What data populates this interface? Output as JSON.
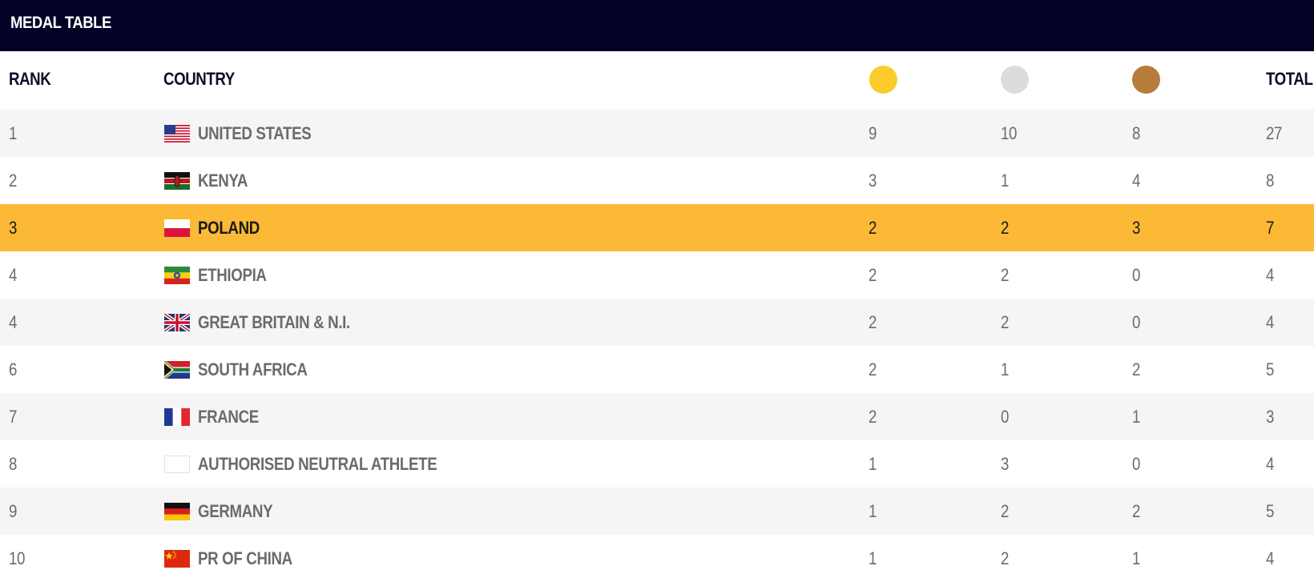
{
  "title": "MEDAL TABLE",
  "headers": {
    "rank": "RANK",
    "country": "COUNTRY",
    "total": "TOTAL"
  },
  "medal_icons": {
    "gold": {
      "icon": "gold-medal-icon",
      "color": "#fccc2d"
    },
    "silver": {
      "icon": "silver-medal-icon",
      "color": "#dcdcde"
    },
    "bronze": {
      "icon": "bronze-medal-icon",
      "color": "#b57c3c"
    }
  },
  "colors": {
    "title_bar": "#020226",
    "highlight_row": "#fbb936",
    "stripe_row": "#f5f5f6"
  },
  "highlighted_country": "POLAND",
  "rows": [
    {
      "rank": "1",
      "country": "UNITED STATES",
      "flag": "usa-flag-icon",
      "gold": "9",
      "silver": "10",
      "bronze": "8",
      "total": "27"
    },
    {
      "rank": "2",
      "country": "KENYA",
      "flag": "kenya-flag-icon",
      "gold": "3",
      "silver": "1",
      "bronze": "4",
      "total": "8"
    },
    {
      "rank": "3",
      "country": "POLAND",
      "flag": "poland-flag-icon",
      "gold": "2",
      "silver": "2",
      "bronze": "3",
      "total": "7"
    },
    {
      "rank": "4",
      "country": "ETHIOPIA",
      "flag": "ethiopia-flag-icon",
      "gold": "2",
      "silver": "2",
      "bronze": "0",
      "total": "4"
    },
    {
      "rank": "4",
      "country": "GREAT BRITAIN & N.I.",
      "flag": "great-britain-flag-icon",
      "gold": "2",
      "silver": "2",
      "bronze": "0",
      "total": "4"
    },
    {
      "rank": "6",
      "country": "SOUTH AFRICA",
      "flag": "south-africa-flag-icon",
      "gold": "2",
      "silver": "1",
      "bronze": "2",
      "total": "5"
    },
    {
      "rank": "7",
      "country": "FRANCE",
      "flag": "france-flag-icon",
      "gold": "2",
      "silver": "0",
      "bronze": "1",
      "total": "3"
    },
    {
      "rank": "8",
      "country": "AUTHORISED NEUTRAL ATHLETE",
      "flag": "blank-flag-icon",
      "gold": "1",
      "silver": "3",
      "bronze": "0",
      "total": "4"
    },
    {
      "rank": "9",
      "country": "GERMANY",
      "flag": "germany-flag-icon",
      "gold": "1",
      "silver": "2",
      "bronze": "2",
      "total": "5"
    },
    {
      "rank": "10",
      "country": "PR OF CHINA",
      "flag": "china-flag-icon",
      "gold": "1",
      "silver": "2",
      "bronze": "1",
      "total": "4"
    }
  ]
}
